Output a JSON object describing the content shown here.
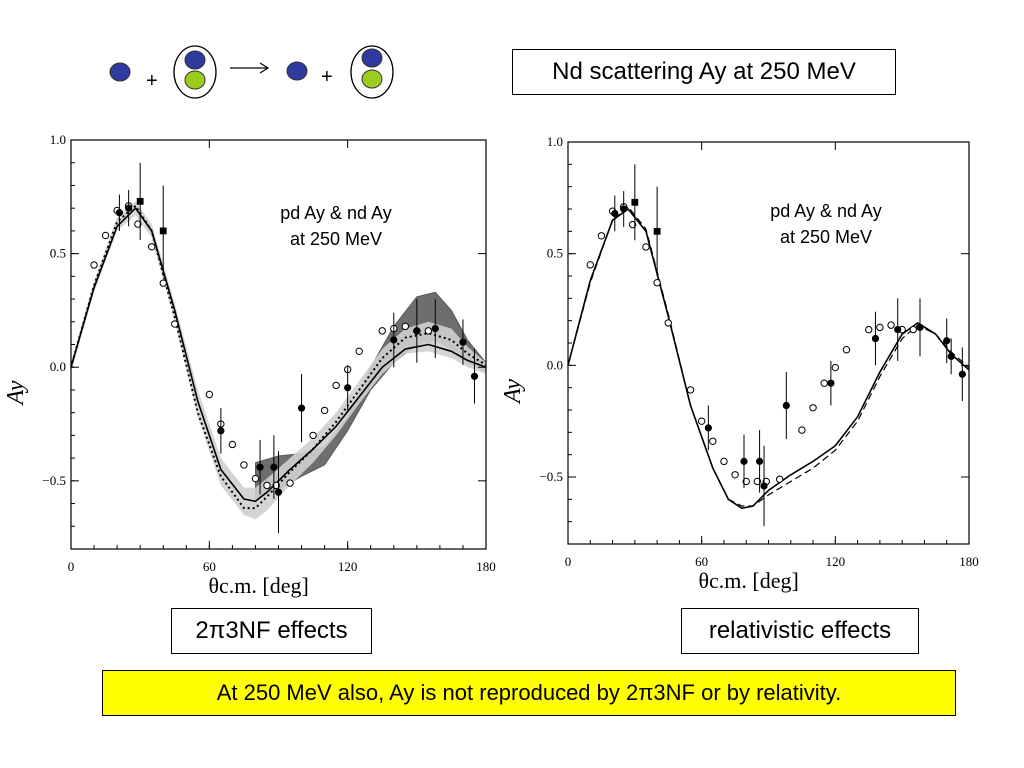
{
  "header": {
    "reaction": {
      "plus_1": "+",
      "plus_2": "+"
    },
    "title_box": "Nd scattering Ay at 250 MeV"
  },
  "colors": {
    "neutron": "#2e3a9e",
    "proton": "#9acd1e",
    "highlight": "#ffff00"
  },
  "left_panel": {
    "note_line1": "pd Ay & nd Ay",
    "note_line2": "at 250 MeV",
    "caption": "2π3NF effects"
  },
  "right_panel": {
    "note_line1": "pd Ay & nd Ay",
    "note_line2": "at 250 MeV",
    "caption": "relativistic effects"
  },
  "conclusion": "At 250 MeV also, Ay is not reproduced by 2π3NF or  by relativity.",
  "chart_data": [
    {
      "type": "scatter",
      "xlabel": "θc.m. [deg]",
      "ylabel": "Ay",
      "xlim": [
        0,
        180
      ],
      "ylim": [
        -0.8,
        1.0
      ],
      "x_ticks": [
        0,
        60,
        120,
        180
      ],
      "y_ticks": [
        1.0,
        0.5,
        0.0,
        -0.5
      ],
      "y_tick_labels": [
        "1.0",
        "0.5",
        "0.0",
        "−0.5"
      ],
      "series": [
        {
          "marker": "open-circle",
          "x": [
            10,
            15,
            20,
            25,
            29,
            35,
            40,
            45,
            60,
            65,
            70,
            75,
            80,
            85,
            89,
            95,
            105,
            110,
            115,
            120,
            125,
            135,
            140,
            145,
            150,
            155
          ],
          "y": [
            0.45,
            0.58,
            0.69,
            0.71,
            0.63,
            0.53,
            0.37,
            0.19,
            -0.12,
            -0.25,
            -0.34,
            -0.43,
            -0.49,
            -0.52,
            -0.52,
            -0.51,
            -0.3,
            -0.19,
            -0.08,
            -0.01,
            0.07,
            0.16,
            0.17,
            0.18,
            0.16,
            0.16
          ]
        },
        {
          "marker": "filled-circle",
          "x": [
            21,
            25,
            65,
            82,
            88,
            90,
            100,
            120,
            140,
            150,
            158,
            170,
            175
          ],
          "y": [
            0.68,
            0.7,
            -0.28,
            -0.44,
            -0.44,
            -0.55,
            -0.18,
            -0.09,
            0.12,
            0.16,
            0.17,
            0.11,
            -0.04
          ],
          "err": [
            0.08,
            0.08,
            0.1,
            0.12,
            0.14,
            0.18,
            0.15,
            0.1,
            0.12,
            0.14,
            0.13,
            0.1,
            0.12
          ]
        },
        {
          "marker": "filled-square",
          "x": [
            30,
            40
          ],
          "y": [
            0.73,
            0.6
          ],
          "err": [
            0.17,
            0.2
          ]
        },
        {
          "style": "solid",
          "x": [
            0,
            10,
            20,
            28,
            35,
            45,
            55,
            65,
            75,
            80,
            85,
            95,
            105,
            115,
            125,
            135,
            145,
            155,
            165,
            172,
            180
          ],
          "y": [
            0,
            0.35,
            0.62,
            0.7,
            0.6,
            0.25,
            -0.15,
            -0.45,
            -0.58,
            -0.59,
            -0.55,
            -0.45,
            -0.36,
            -0.26,
            -0.13,
            0.0,
            0.08,
            0.1,
            0.07,
            0.03,
            0.0
          ]
        },
        {
          "style": "dotted",
          "x": [
            0,
            10,
            20,
            28,
            35,
            45,
            55,
            65,
            75,
            80,
            85,
            95,
            105,
            115,
            125,
            135,
            145,
            155,
            165,
            172,
            180
          ],
          "y": [
            0,
            0.36,
            0.64,
            0.71,
            0.6,
            0.22,
            -0.2,
            -0.48,
            -0.62,
            -0.62,
            -0.57,
            -0.46,
            -0.36,
            -0.24,
            -0.1,
            0.04,
            0.13,
            0.15,
            0.12,
            0.06,
            0.01
          ]
        },
        {
          "style": "hatched-band",
          "x": [
            80,
            90,
            100,
            110,
            120,
            130,
            140,
            150,
            158,
            165,
            172,
            180
          ],
          "upper": [
            -0.42,
            -0.39,
            -0.38,
            -0.35,
            -0.22,
            0.0,
            0.18,
            0.31,
            0.33,
            0.25,
            0.12,
            0.02
          ],
          "lower": [
            -0.58,
            -0.54,
            -0.48,
            -0.43,
            -0.28,
            -0.1,
            0.02,
            0.1,
            0.12,
            0.08,
            0.02,
            -0.02
          ]
        },
        {
          "style": "grey-band",
          "x": [
            0,
            10,
            20,
            28,
            35,
            45,
            55,
            65,
            75,
            80,
            85,
            95,
            105,
            115,
            125,
            135,
            145,
            155,
            165,
            172,
            180
          ],
          "upper": [
            0.02,
            0.38,
            0.66,
            0.73,
            0.63,
            0.28,
            -0.1,
            -0.4,
            -0.53,
            -0.53,
            -0.49,
            -0.4,
            -0.31,
            -0.2,
            -0.06,
            0.08,
            0.17,
            0.2,
            0.17,
            0.09,
            0.02
          ],
          "lower": [
            -0.02,
            0.33,
            0.6,
            0.67,
            0.57,
            0.2,
            -0.22,
            -0.52,
            -0.65,
            -0.67,
            -0.63,
            -0.52,
            -0.42,
            -0.3,
            -0.16,
            -0.03,
            0.06,
            0.07,
            0.04,
            0.0,
            -0.03
          ]
        }
      ]
    },
    {
      "type": "scatter",
      "xlabel": "θc.m. [deg]",
      "ylabel": "Ay",
      "xlim": [
        0,
        180
      ],
      "ylim": [
        -0.8,
        1.0
      ],
      "x_ticks": [
        0,
        60,
        120,
        180
      ],
      "y_ticks": [
        1.0,
        0.5,
        0.0,
        -0.5
      ],
      "y_tick_labels": [
        "1.0",
        "0.5",
        "0.0",
        "−0.5"
      ],
      "series": [
        {
          "marker": "open-circle",
          "x": [
            10,
            15,
            20,
            25,
            29,
            35,
            40,
            45,
            55,
            60,
            65,
            70,
            75,
            80,
            85,
            89,
            95,
            105,
            110,
            115,
            120,
            125,
            135,
            140,
            145,
            150,
            155
          ],
          "y": [
            0.45,
            0.58,
            0.69,
            0.71,
            0.63,
            0.53,
            0.37,
            0.19,
            -0.11,
            -0.25,
            -0.34,
            -0.43,
            -0.49,
            -0.52,
            -0.52,
            -0.52,
            -0.51,
            -0.29,
            -0.19,
            -0.08,
            -0.01,
            0.07,
            0.16,
            0.17,
            0.18,
            0.16,
            0.16
          ]
        },
        {
          "marker": "filled-circle",
          "x": [
            21,
            25,
            63,
            79,
            86,
            88,
            98,
            118,
            138,
            148,
            158,
            170,
            172,
            177
          ],
          "y": [
            0.68,
            0.7,
            -0.28,
            -0.43,
            -0.43,
            -0.54,
            -0.18,
            -0.08,
            0.12,
            0.16,
            0.17,
            0.11,
            0.04,
            -0.04
          ],
          "err": [
            0.08,
            0.08,
            0.1,
            0.12,
            0.14,
            0.18,
            0.15,
            0.1,
            0.12,
            0.14,
            0.13,
            0.1,
            0.08,
            0.12
          ]
        },
        {
          "marker": "filled-square",
          "x": [
            30,
            40
          ],
          "y": [
            0.73,
            0.6
          ],
          "err": [
            0.17,
            0.2
          ]
        },
        {
          "style": "solid",
          "x": [
            0,
            10,
            20,
            27,
            35,
            45,
            55,
            65,
            72,
            78,
            83,
            90,
            100,
            110,
            120,
            130,
            140,
            150,
            157,
            165,
            172,
            180
          ],
          "y": [
            0,
            0.38,
            0.65,
            0.7,
            0.6,
            0.22,
            -0.18,
            -0.46,
            -0.6,
            -0.64,
            -0.63,
            -0.56,
            -0.49,
            -0.43,
            -0.36,
            -0.23,
            -0.03,
            0.14,
            0.19,
            0.14,
            0.05,
            -0.02
          ]
        },
        {
          "style": "dashed",
          "x": [
            0,
            10,
            20,
            27,
            35,
            45,
            55,
            65,
            72,
            78,
            83,
            90,
            100,
            110,
            120,
            130,
            140,
            150,
            157,
            165,
            172,
            180
          ],
          "y": [
            0,
            0.37,
            0.65,
            0.71,
            0.61,
            0.23,
            -0.18,
            -0.46,
            -0.6,
            -0.63,
            -0.63,
            -0.58,
            -0.52,
            -0.46,
            -0.38,
            -0.25,
            -0.05,
            0.12,
            0.18,
            0.14,
            0.06,
            -0.01
          ]
        }
      ]
    }
  ]
}
